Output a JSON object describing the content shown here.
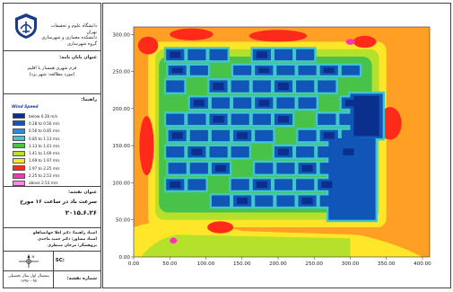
{
  "university": {
    "line1": "دانشگاه علوم و تحقیقات تهران",
    "line2": "دانشکده معماری و شهرسازی",
    "line3": "گروه شهرسازی"
  },
  "thesis": {
    "label": "عنوان پایان نامه:",
    "line1": "فرم شهری همساز با اقلیم",
    "line2": "(مورد مطالعه: شهر یزد)"
  },
  "legend": {
    "label": "راهنما:",
    "title": "Wind Speed",
    "items": [
      {
        "label": "below 0.28 m/s",
        "color": "#0b2f8c"
      },
      {
        "label": "0.28 to 0.56 m/s",
        "color": "#1155b8"
      },
      {
        "label": "0.56 to 0.85 m/s",
        "color": "#2a8ed6"
      },
      {
        "label": "0.85 to 1.13 m/s",
        "color": "#41c7c9"
      },
      {
        "label": "1.13 to 1.41 m/s",
        "color": "#49c24a"
      },
      {
        "label": "1.41 to 1.69 m/s",
        "color": "#b5e02c"
      },
      {
        "label": "1.69 to 1.97 m/s",
        "color": "#ffe629"
      },
      {
        "label": "1.97 to 2.25 m/s",
        "color": "#ff2a1a"
      },
      {
        "label": "2.25 to 2.53 m/s",
        "color": "#ff33b5"
      },
      {
        "label": "above 2.53 m/s",
        "color": "#ff8ae6"
      }
    ]
  },
  "map_title": {
    "label": "عنوان نقشه:",
    "line1": "سرعت باد در ساعت ۱۶ مورخ",
    "line2": "۲۰۱۵.۶.۲۶"
  },
  "people": {
    "advisor": "استاد راهنما: دکتر لعلا جهانشاهلو",
    "consultant": "استاد مشاور: دکتر حمید ماجدی",
    "researcher": "پژوهشگر: مرجان منتظری"
  },
  "bottom": {
    "north_label": "N",
    "sc_label": "SC:",
    "year_line1": "نیمسال اول سال تحصیلی",
    "year_line2": "۹۷ - ۱۳۹۶",
    "sheet_label": "شماره نقشه:"
  },
  "chart_data": {
    "type": "heatmap",
    "quantity": "Wind Speed",
    "unit": "m/s",
    "x_ticks": [
      0,
      50,
      100,
      150,
      200,
      250,
      300,
      350,
      400
    ],
    "y_ticks": [
      0,
      50,
      100,
      150,
      200,
      250,
      300
    ],
    "x_tick_labels": [
      "0.00",
      "50.00",
      "100.00",
      "150.00",
      "200.00",
      "250.00",
      "300.00",
      "350.00",
      "400.00"
    ],
    "y_tick_labels": [
      "0.00",
      "50.00",
      "100.00",
      "150.00",
      "200.00",
      "250.00",
      "300.00"
    ],
    "xlim": [
      0,
      410
    ],
    "ylim": [
      0,
      310
    ],
    "background_color": "#ffa024",
    "buildings_color": "#1155b8"
  }
}
